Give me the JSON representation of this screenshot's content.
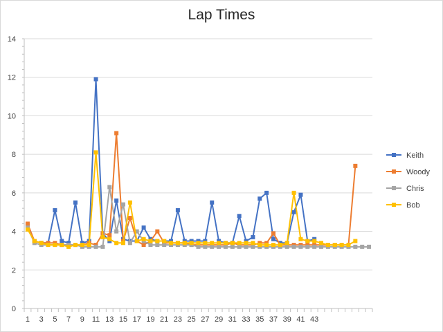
{
  "chart_data": {
    "type": "line",
    "title": "Lap Times",
    "xlabel": "",
    "ylabel": "",
    "ylim": [
      0,
      14
    ],
    "y_ticks": [
      0,
      2,
      4,
      6,
      8,
      10,
      12,
      14
    ],
    "x_tick_labels": [
      "1",
      "3",
      "5",
      "7",
      "9",
      "11",
      "13",
      "15",
      "17",
      "19",
      "21",
      "23",
      "25",
      "27",
      "29",
      "31",
      "33",
      "35",
      "37",
      "39",
      "41",
      "43"
    ],
    "x_count": 51,
    "grid": "horizontal",
    "legend": "right",
    "markers": "square",
    "series": [
      {
        "name": "Keith",
        "color": "#4472C4",
        "values": [
          4.3,
          3.5,
          3.4,
          3.4,
          5.1,
          3.5,
          3.4,
          5.5,
          3.4,
          3.5,
          11.9,
          3.9,
          3.5,
          5.6,
          3.6,
          3.5,
          3.5,
          4.2,
          3.6,
          3.5,
          3.5,
          3.5,
          5.1,
          3.5,
          3.5,
          3.5,
          3.5,
          5.5,
          3.5,
          3.4,
          3.4,
          4.8,
          3.5,
          3.7,
          5.7,
          6.0,
          3.6,
          3.4,
          3.4,
          5.0,
          5.9,
          3.5,
          3.6
        ]
      },
      {
        "name": "Woody",
        "color": "#ED7D31",
        "values": [
          4.4,
          3.5,
          3.4,
          3.4,
          3.4,
          3.3,
          3.3,
          3.3,
          3.3,
          3.4,
          3.3,
          3.9,
          3.8,
          9.1,
          3.5,
          4.7,
          3.5,
          3.3,
          3.5,
          4.0,
          3.4,
          3.4,
          3.4,
          3.4,
          3.3,
          3.3,
          3.3,
          3.3,
          3.3,
          3.3,
          3.4,
          3.3,
          3.3,
          3.3,
          3.4,
          3.4,
          3.9,
          3.3,
          3.3,
          3.3,
          3.3,
          3.3,
          3.3,
          3.3,
          3.3,
          3.3,
          3.3,
          3.3,
          7.4
        ]
      },
      {
        "name": "Chris",
        "color": "#A5A5A5",
        "values": [
          4.2,
          3.4,
          3.3,
          3.3,
          3.3,
          3.3,
          3.3,
          3.3,
          3.2,
          3.2,
          3.2,
          3.2,
          6.3,
          4.0,
          5.4,
          3.4,
          4.0,
          3.5,
          3.3,
          3.3,
          3.3,
          3.3,
          3.3,
          3.3,
          3.3,
          3.2,
          3.2,
          3.2,
          3.2,
          3.2,
          3.2,
          3.2,
          3.2,
          3.2,
          3.2,
          3.2,
          3.2,
          3.2,
          3.2,
          3.2,
          3.2,
          3.2,
          3.2,
          3.2,
          3.2,
          3.2,
          3.2,
          3.2,
          3.2,
          3.2,
          3.2
        ]
      },
      {
        "name": "Bob",
        "color": "#FFC000",
        "values": [
          4.1,
          3.5,
          3.4,
          3.3,
          3.3,
          3.3,
          3.2,
          3.3,
          3.3,
          3.3,
          8.1,
          3.7,
          3.6,
          3.4,
          3.4,
          5.5,
          3.5,
          3.6,
          3.5,
          3.5,
          3.5,
          3.4,
          3.4,
          3.4,
          3.4,
          3.4,
          3.4,
          3.4,
          3.4,
          3.4,
          3.4,
          3.4,
          3.4,
          3.4,
          3.3,
          3.3,
          3.3,
          3.3,
          3.4,
          6.0,
          3.6,
          3.5,
          3.5,
          3.4,
          3.3,
          3.3,
          3.3,
          3.3,
          3.5
        ]
      }
    ]
  }
}
